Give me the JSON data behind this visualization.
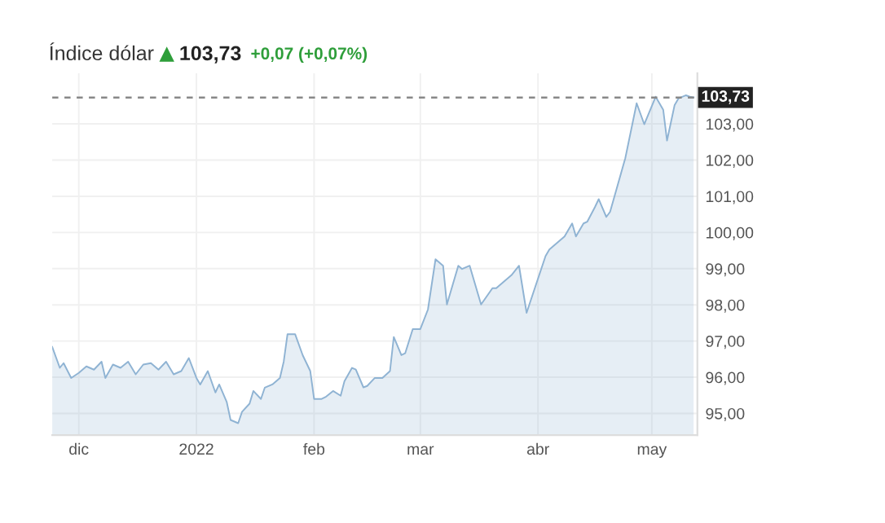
{
  "chart_data": {
    "type": "area",
    "title": "Índice dólar",
    "annotations": [
      "103,73",
      "+0,07 (+0,07%)"
    ],
    "x": [
      "2021-11-24",
      "2021-11-26",
      "2021-11-27",
      "2021-11-29",
      "2021-12-01",
      "2021-12-03",
      "2021-12-05",
      "2021-12-07",
      "2021-12-08",
      "2021-12-10",
      "2021-12-12",
      "2021-12-14",
      "2021-12-16",
      "2021-12-18",
      "2021-12-20",
      "2021-12-22",
      "2021-12-24",
      "2021-12-26",
      "2021-12-28",
      "2021-12-30",
      "2022-01-01",
      "2022-01-02",
      "2022-01-04",
      "2022-01-06",
      "2022-01-07",
      "2022-01-09",
      "2022-01-10",
      "2022-01-12",
      "2022-01-13",
      "2022-01-15",
      "2022-01-16",
      "2022-01-18",
      "2022-01-19",
      "2022-01-21",
      "2022-01-23",
      "2022-01-24",
      "2022-01-25",
      "2022-01-27",
      "2022-01-29",
      "2022-01-31",
      "2022-02-01",
      "2022-02-03",
      "2022-02-04",
      "2022-02-06",
      "2022-02-08",
      "2022-02-09",
      "2022-02-11",
      "2022-02-12",
      "2022-02-14",
      "2022-02-15",
      "2022-02-17",
      "2022-02-19",
      "2022-02-21",
      "2022-02-22",
      "2022-02-24",
      "2022-02-25",
      "2022-02-27",
      "2022-03-01",
      "2022-03-03",
      "2022-03-05",
      "2022-03-07",
      "2022-03-08",
      "2022-03-11",
      "2022-03-12",
      "2022-03-14",
      "2022-03-17",
      "2022-03-20",
      "2022-03-21",
      "2022-03-24",
      "2022-03-25",
      "2022-03-27",
      "2022-03-29",
      "2022-03-31",
      "2022-04-03",
      "2022-04-04",
      "2022-04-06",
      "2022-04-08",
      "2022-04-10",
      "2022-04-11",
      "2022-04-13",
      "2022-04-14",
      "2022-04-16",
      "2022-04-17",
      "2022-04-19",
      "2022-04-20",
      "2022-04-24",
      "2022-04-27",
      "2022-04-29",
      "2022-05-02",
      "2022-05-04",
      "2022-05-05",
      "2022-05-07",
      "2022-05-08",
      "2022-05-10",
      "2022-05-11",
      "2022-05-12"
    ],
    "series": [
      {
        "color": "#8fb3d3",
        "values": [
          96.84,
          96.26,
          96.39,
          95.98,
          96.12,
          96.3,
          96.21,
          96.43,
          95.98,
          96.35,
          96.26,
          96.43,
          96.08,
          96.35,
          96.39,
          96.21,
          96.43,
          96.08,
          96.17,
          96.53,
          95.98,
          95.8,
          96.17,
          95.58,
          95.8,
          95.31,
          94.82,
          94.73,
          95.04,
          95.27,
          95.62,
          95.4,
          95.71,
          95.8,
          95.98,
          96.43,
          97.19,
          97.19,
          96.61,
          96.17,
          95.4,
          95.4,
          95.45,
          95.62,
          95.49,
          95.89,
          96.26,
          96.21,
          95.72,
          95.76,
          95.98,
          95.98,
          96.17,
          97.11,
          96.61,
          96.66,
          97.33,
          97.33,
          97.87,
          99.26,
          99.08,
          98.01,
          99.08,
          98.99,
          99.08,
          98.01,
          98.46,
          98.46,
          98.73,
          98.82,
          99.08,
          97.78,
          98.41,
          99.35,
          99.53,
          99.71,
          99.89,
          100.25,
          99.89,
          100.25,
          100.3,
          100.7,
          100.92,
          100.43,
          100.57,
          102.05,
          103.57,
          102.99,
          103.75,
          103.39,
          102.54,
          103.52,
          103.7,
          103.79,
          103.75,
          103.73
        ]
      }
    ],
    "xlim": [
      "2021-11-24",
      "2022-05-13"
    ],
    "xticks": [
      {
        "value": "2021-12-01",
        "label": "dic"
      },
      {
        "value": "2022-01-01",
        "label": "2022"
      },
      {
        "value": "2022-02-01",
        "label": "feb"
      },
      {
        "value": "2022-03-01",
        "label": "mar"
      },
      {
        "value": "2022-04-01",
        "label": "abr"
      },
      {
        "value": "2022-05-01",
        "label": "may"
      }
    ],
    "ylim": [
      94.4,
      104.4
    ],
    "yticks": [
      {
        "value": 95,
        "label": "95,00"
      },
      {
        "value": 96,
        "label": "96,00"
      },
      {
        "value": 97,
        "label": "97,00"
      },
      {
        "value": 98,
        "label": "98,00"
      },
      {
        "value": 99,
        "label": "99,00"
      },
      {
        "value": 100,
        "label": "100,00"
      },
      {
        "value": 101,
        "label": "101,00"
      },
      {
        "value": 102,
        "label": "102,00"
      },
      {
        "value": 103,
        "label": "103,00"
      }
    ],
    "ref_lines": [
      {
        "axis": "y",
        "value": 103.73,
        "label": "103,73",
        "color": "#888888",
        "line_style": "dashed"
      }
    ],
    "grid": true
  }
}
